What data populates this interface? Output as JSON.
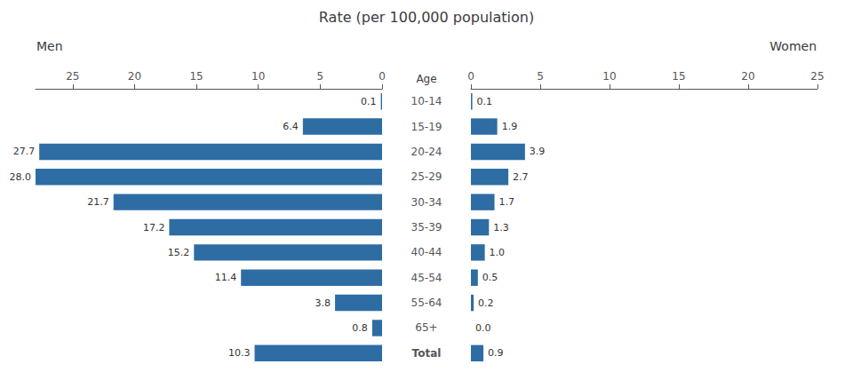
{
  "chart_data": {
    "type": "bar",
    "orientation": "horizontal",
    "title": "Rate (per 100,000 population)",
    "ylabel": "Age",
    "categories": [
      "10-14",
      "15-19",
      "20-24",
      "25-29",
      "30-34",
      "35-39",
      "40-44",
      "45-54",
      "55-64",
      "65+",
      "Total"
    ],
    "series": [
      {
        "name": "Men",
        "color": "#2E6DA4",
        "values": [
          0.1,
          6.4,
          27.7,
          28.0,
          21.7,
          17.2,
          15.2,
          11.4,
          3.8,
          0.8,
          10.3
        ],
        "value_labels": [
          "0.1",
          "6.4",
          "27.7",
          "28.0",
          "21.7",
          "17.2",
          "15.2",
          "11.4",
          "3.8",
          "0.8",
          "10.3"
        ],
        "xlim": [
          28,
          0
        ],
        "xticks": [
          25,
          20,
          15,
          10,
          5,
          0
        ]
      },
      {
        "name": "Women",
        "color": "#2E6DA4",
        "values": [
          0.1,
          1.9,
          3.9,
          2.7,
          1.7,
          1.3,
          1.0,
          0.5,
          0.2,
          0.0,
          0.9
        ],
        "value_labels": [
          "0.1",
          "1.9",
          "3.9",
          "2.7",
          "1.7",
          "1.3",
          "1.0",
          "0.5",
          "0.2",
          "0.0",
          "0.9"
        ],
        "xlim": [
          0,
          25
        ],
        "xticks": [
          0,
          5,
          10,
          15,
          20,
          25
        ]
      }
    ],
    "data_labels": true,
    "grid": false
  }
}
